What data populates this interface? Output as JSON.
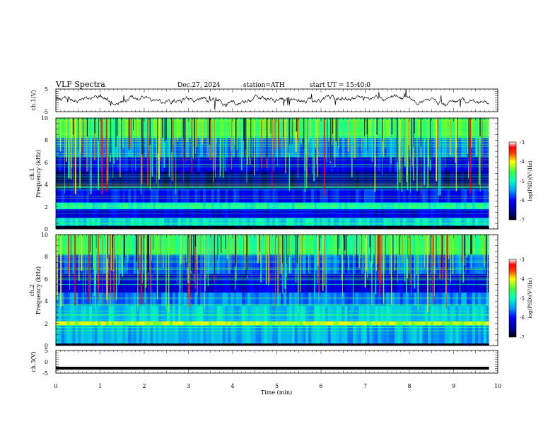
{
  "header": {
    "title": "VLF Spectra",
    "date": "Dec.27, 2024",
    "station": "station=ATH",
    "start_ut": "start UT = 15:40:0"
  },
  "chart_data": [
    {
      "type": "line",
      "id": "ch1_waveform",
      "ylabel": "ch.1(V)",
      "ylim": [
        -5,
        5
      ],
      "y_ticks": [
        "5",
        "-5"
      ],
      "xlim": [
        0,
        10
      ],
      "x_extent_min": 9.8,
      "baseline_v": 0
    },
    {
      "type": "heatmap",
      "id": "ch1_spectrogram",
      "ylabel_line1": "ch.1",
      "ylabel_line2": "Frequency (kHz)",
      "ylim": [
        0,
        10
      ],
      "y_ticks": [
        "0",
        "2",
        "4",
        "6",
        "8",
        "10"
      ],
      "xlim": [
        0,
        10
      ],
      "x_extent_min": 9.8,
      "bands_khz": [
        {
          "from": 0.0,
          "to": 0.3,
          "level": -7
        },
        {
          "from": 0.3,
          "to": 1.0,
          "level": -5.2
        },
        {
          "from": 1.0,
          "to": 1.8,
          "level": -6.2
        },
        {
          "from": 1.8,
          "to": 2.4,
          "level": -5.0
        },
        {
          "from": 2.4,
          "to": 3.6,
          "level": -6.0
        },
        {
          "from": 3.6,
          "to": 5.2,
          "level": -6.6
        },
        {
          "from": 5.2,
          "to": 6.5,
          "level": -6.1
        },
        {
          "from": 6.5,
          "to": 8.2,
          "level": -5.6
        },
        {
          "from": 8.2,
          "to": 10.0,
          "level": -4.6
        }
      ],
      "colorbar": {
        "label": "log(PSD)(V²/Hz)",
        "range": [
          -7,
          -3
        ],
        "ticks": [
          "-3",
          "-4",
          "-5",
          "-6",
          "-7"
        ]
      }
    },
    {
      "type": "heatmap",
      "id": "ch2_spectrogram",
      "ylabel_line1": "ch.2",
      "ylabel_line2": "Frequency (kHz)",
      "ylim": [
        0,
        10
      ],
      "y_ticks": [
        "0",
        "2",
        "4",
        "6",
        "8",
        "10"
      ],
      "xlim": [
        0,
        10
      ],
      "x_extent_min": 9.8,
      "bands_khz": [
        {
          "from": 0.0,
          "to": 0.2,
          "level": -7
        },
        {
          "from": 0.2,
          "to": 1.8,
          "level": -5.4
        },
        {
          "from": 1.8,
          "to": 2.2,
          "level": -4.2
        },
        {
          "from": 2.2,
          "to": 3.6,
          "level": -5.3
        },
        {
          "from": 3.6,
          "to": 4.8,
          "level": -5.6
        },
        {
          "from": 4.8,
          "to": 6.5,
          "level": -6.2
        },
        {
          "from": 6.5,
          "to": 8.2,
          "level": -5.7
        },
        {
          "from": 8.2,
          "to": 10.0,
          "level": -4.7
        }
      ],
      "colorbar": {
        "label": "log(PSD)(V²/Hz)",
        "range": [
          -7,
          -3
        ],
        "ticks": [
          "-3",
          "-4",
          "-5",
          "-6",
          "-7"
        ]
      }
    },
    {
      "type": "line",
      "id": "ch3_waveform",
      "ylabel": "ch.3(V)",
      "ylim": [
        -5,
        5
      ],
      "y_ticks": [
        "5",
        "0",
        "-5"
      ],
      "xlim": [
        0,
        10
      ],
      "x_extent_min": 9.8,
      "baseline_v": -2.8,
      "xlabel": "Time (min)",
      "x_ticks": [
        "0",
        "1",
        "2",
        "3",
        "4",
        "5",
        "6",
        "7",
        "8",
        "9",
        "10"
      ]
    }
  ]
}
